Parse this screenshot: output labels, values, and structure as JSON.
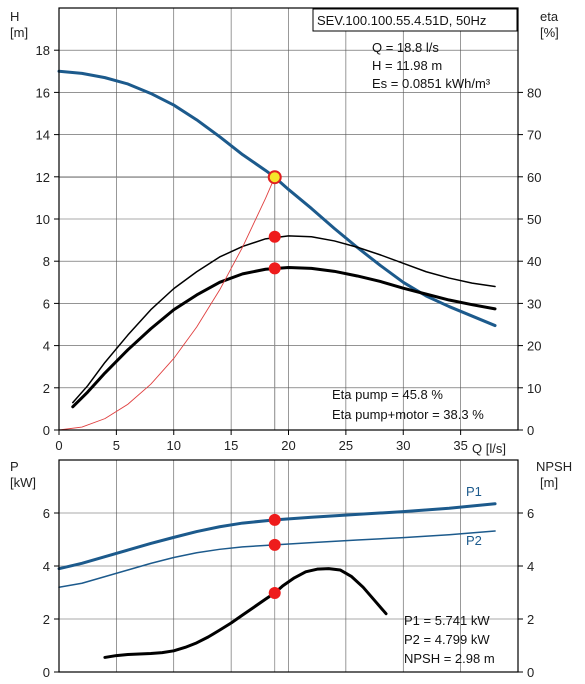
{
  "chart_data": [
    {
      "type": "line",
      "title": "SEV.100.100.55.4.51D, 50Hz",
      "xlabel": "Q [l/s]",
      "ylabel": "H [m]",
      "y2label": "eta [%]",
      "ylabel_parts": [
        "H",
        "[m]"
      ],
      "y2label_parts": [
        "eta",
        "[%]"
      ],
      "xlim": [
        0,
        40
      ],
      "ylim": [
        0,
        20
      ],
      "y2lim": [
        0,
        100
      ],
      "xticks": [
        0,
        5,
        10,
        15,
        20,
        25,
        30,
        35
      ],
      "yticks": [
        0,
        2,
        4,
        6,
        8,
        10,
        12,
        14,
        16,
        18
      ],
      "y2ticks": [
        0,
        10,
        20,
        30,
        40,
        50,
        60,
        70,
        80
      ],
      "grid": true,
      "info": [
        "Q = 18.8 l/s",
        "H = 11.98 m",
        "Es = 0.0851 kWh/m³"
      ],
      "eta_info": [
        "Eta pump = 45.8 %",
        "Eta pump+motor = 38.3 %"
      ],
      "operating_point": {
        "q": 18.8,
        "h": 11.98,
        "eta_pump": 45.8,
        "eta_total": 38.3
      },
      "series": [
        {
          "axis": "left",
          "color": "#1c5a8c",
          "width": 3,
          "x": [
            0,
            2,
            4,
            6,
            8,
            10,
            12,
            14,
            16,
            18,
            18.8,
            20,
            22,
            24,
            26,
            28,
            30,
            32,
            34,
            36,
            38
          ],
          "y": [
            17.0,
            16.9,
            16.7,
            16.4,
            15.95,
            15.4,
            14.7,
            13.9,
            13.05,
            12.3,
            11.98,
            11.4,
            10.5,
            9.55,
            8.65,
            7.8,
            7.0,
            6.35,
            5.85,
            5.4,
            4.95
          ]
        },
        {
          "axis": "right",
          "color": "#000000",
          "width": 1.5,
          "x": [
            1.2,
            2.5,
            4,
            6,
            8,
            10,
            12,
            14,
            16,
            18,
            20,
            22,
            24,
            26,
            28,
            30,
            32,
            34,
            36,
            38
          ],
          "y": [
            6.5,
            10.5,
            16,
            22.5,
            28.5,
            33.5,
            37.5,
            41,
            43.5,
            45.3,
            46,
            45.8,
            44.8,
            43.3,
            41.5,
            39.5,
            37.5,
            36,
            34.8,
            34
          ]
        },
        {
          "axis": "right",
          "color": "#000000",
          "width": 3,
          "x": [
            1.2,
            2.5,
            4,
            6,
            8,
            10,
            12,
            14,
            16,
            18,
            20,
            22,
            24,
            26,
            28,
            30,
            32,
            34,
            36,
            38
          ],
          "y": [
            5.5,
            9,
            13.5,
            19,
            24,
            28.5,
            32,
            35,
            37,
            38.1,
            38.5,
            38.3,
            37.6,
            36.5,
            35.2,
            33.6,
            32.2,
            30.8,
            29.7,
            28.7
          ]
        },
        {
          "axis": "left",
          "color": "#e04040",
          "width": 0.9,
          "x": [
            0,
            2,
            4,
            6,
            8,
            10,
            12,
            14,
            16,
            18,
            18.8
          ],
          "y": [
            0,
            0.14,
            0.54,
            1.22,
            2.17,
            3.39,
            4.88,
            6.64,
            8.67,
            10.98,
            11.98
          ]
        }
      ],
      "markers": [
        {
          "x": 18.8,
          "y": 11.98,
          "axis": "left",
          "fill": "#f5e62a",
          "stroke": "#e02020"
        },
        {
          "x": 18.8,
          "y": 45.8,
          "axis": "right",
          "fill": "#ee1c1c",
          "stroke": "#ee1c1c"
        },
        {
          "x": 18.8,
          "y": 38.3,
          "axis": "right",
          "fill": "#ee1c1c",
          "stroke": "#ee1c1c"
        }
      ]
    },
    {
      "type": "line",
      "title": "",
      "xlabel": "",
      "ylabel": "P [kW]",
      "y2label": "NPSH [m]",
      "ylabel_parts": [
        "P",
        "[kW]"
      ],
      "y2label_parts": [
        "NPSH",
        "[m]"
      ],
      "xlim": [
        0,
        40
      ],
      "ylim": [
        0,
        8
      ],
      "y2lim": [
        0,
        8
      ],
      "yticks": [
        0,
        2,
        4,
        6
      ],
      "y2ticks": [
        0,
        2,
        4,
        6
      ],
      "grid": true,
      "info": [
        "P1 = 5.741 kW",
        "P2 = 4.799 kW",
        "NPSH = 2.98 m"
      ],
      "series": [
        {
          "name": "P1",
          "axis": "left",
          "color": "#1c5a8c",
          "width": 3,
          "x": [
            0,
            2,
            4,
            6,
            8,
            10,
            12,
            14,
            16,
            18.8,
            22,
            26,
            30,
            34,
            38
          ],
          "y": [
            3.9,
            4.1,
            4.35,
            4.6,
            4.85,
            5.08,
            5.3,
            5.48,
            5.62,
            5.741,
            5.84,
            5.95,
            6.05,
            6.18,
            6.35
          ]
        },
        {
          "name": "P2",
          "axis": "left",
          "color": "#1c5a8c",
          "width": 1.5,
          "x": [
            0,
            2,
            4,
            6,
            8,
            10,
            12,
            14,
            16,
            18.8,
            22,
            26,
            30,
            34,
            38
          ],
          "y": [
            3.2,
            3.35,
            3.6,
            3.85,
            4.1,
            4.32,
            4.5,
            4.63,
            4.72,
            4.799,
            4.88,
            4.98,
            5.07,
            5.18,
            5.32
          ]
        },
        {
          "axis": "right",
          "color": "#000000",
          "width": 3,
          "x": [
            4,
            5,
            6,
            7,
            8,
            9,
            10,
            11,
            12,
            13,
            14,
            15,
            16,
            17,
            18,
            18.8,
            19.5,
            20.5,
            21.5,
            22.5,
            23.5,
            24.5,
            25.5,
            26.5,
            27.5,
            28.5
          ],
          "y": [
            0.55,
            0.62,
            0.66,
            0.68,
            0.7,
            0.73,
            0.8,
            0.93,
            1.1,
            1.32,
            1.58,
            1.85,
            2.15,
            2.45,
            2.75,
            2.98,
            3.25,
            3.55,
            3.78,
            3.88,
            3.9,
            3.85,
            3.6,
            3.2,
            2.7,
            2.2
          ]
        }
      ],
      "markers": [
        {
          "x": 18.8,
          "y": 5.741,
          "axis": "left",
          "fill": "#ee1c1c",
          "stroke": "#ee1c1c"
        },
        {
          "x": 18.8,
          "y": 4.799,
          "axis": "left",
          "fill": "#ee1c1c",
          "stroke": "#ee1c1c"
        },
        {
          "x": 18.8,
          "y": 2.98,
          "axis": "right",
          "fill": "#ee1c1c",
          "stroke": "#ee1c1c"
        }
      ]
    }
  ]
}
